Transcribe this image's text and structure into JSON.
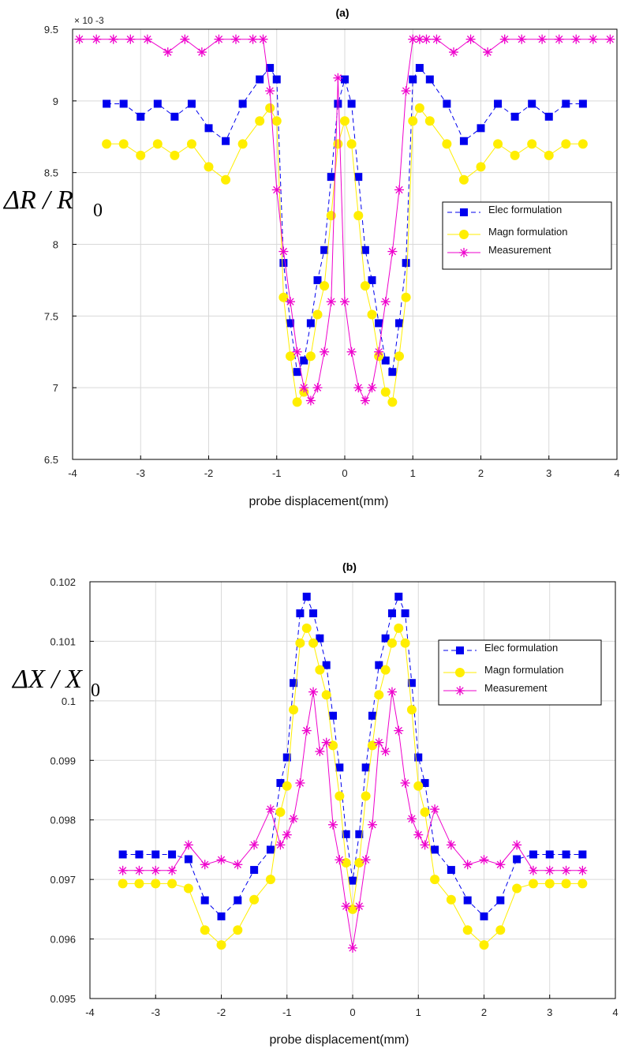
{
  "chart_data": [
    {
      "type": "line",
      "title": "(a)",
      "xlabel": "probe displacement(mm)",
      "ylabel": "ΔR / R",
      "ylabel_sub": "0",
      "y_exponent_label": "× 10 -3",
      "xlim": [
        -4,
        4
      ],
      "ylim": [
        6.5,
        9.5
      ],
      "xticks": [
        -4,
        -3,
        -2,
        -1,
        0,
        1,
        2,
        3,
        4
      ],
      "yticks": [
        6.5,
        7,
        7.5,
        8,
        8.5,
        9,
        9.5
      ],
      "ytick_labels": [
        "6.5",
        "7",
        "7.5",
        "8",
        "8.5",
        "9",
        "9.5"
      ],
      "grid": true,
      "legend_position": "center-right",
      "series": [
        {
          "name": "Elec formulation",
          "color": "#0000ee",
          "dash": "6,4",
          "marker": "square",
          "x": [
            -3.5,
            -3.25,
            -3,
            -2.75,
            -2.5,
            -2.25,
            -2,
            -1.75,
            -1.5,
            -1.25,
            -1.1,
            -1,
            -0.9,
            -0.8,
            -0.7,
            -0.6,
            -0.5,
            -0.4,
            -0.3,
            -0.2,
            -0.1,
            0,
            0.1,
            0.2,
            0.3,
            0.4,
            0.5,
            0.6,
            0.7,
            0.8,
            0.9,
            1,
            1.1,
            1.25,
            1.5,
            1.75,
            2,
            2.25,
            2.5,
            2.75,
            3,
            3.25,
            3.5
          ],
          "y": [
            8.98,
            8.98,
            8.89,
            8.98,
            8.89,
            8.98,
            8.81,
            8.72,
            8.98,
            9.15,
            9.23,
            9.15,
            7.87,
            7.45,
            7.11,
            7.19,
            7.45,
            7.75,
            7.96,
            8.47,
            8.98,
            9.15,
            8.98,
            8.47,
            7.96,
            7.75,
            7.45,
            7.19,
            7.11,
            7.45,
            7.87,
            9.15,
            9.23,
            9.15,
            8.98,
            8.72,
            8.81,
            8.98,
            8.89,
            8.98,
            8.89,
            8.98,
            8.98
          ]
        },
        {
          "name": "Magn formulation",
          "color": "#ffee00",
          "dash": "",
          "marker": "circle",
          "x": [
            -3.5,
            -3.25,
            -3,
            -2.75,
            -2.5,
            -2.25,
            -2,
            -1.75,
            -1.5,
            -1.25,
            -1.1,
            -1,
            -0.9,
            -0.8,
            -0.7,
            -0.6,
            -0.5,
            -0.4,
            -0.3,
            -0.2,
            -0.1,
            0,
            0.1,
            0.2,
            0.3,
            0.4,
            0.5,
            0.6,
            0.7,
            0.8,
            0.9,
            1,
            1.1,
            1.25,
            1.5,
            1.75,
            2,
            2.25,
            2.5,
            2.75,
            3,
            3.25,
            3.5
          ],
          "y": [
            8.7,
            8.7,
            8.62,
            8.7,
            8.62,
            8.7,
            8.54,
            8.45,
            8.7,
            8.86,
            8.95,
            8.86,
            7.63,
            7.22,
            6.9,
            6.97,
            7.22,
            7.51,
            7.71,
            8.2,
            8.7,
            8.86,
            8.7,
            8.2,
            7.71,
            7.51,
            7.22,
            6.97,
            6.9,
            7.22,
            7.63,
            8.86,
            8.95,
            8.86,
            8.7,
            8.45,
            8.54,
            8.7,
            8.62,
            8.7,
            8.62,
            8.7,
            8.7
          ]
        },
        {
          "name": "Measurement",
          "color": "#ee00cc",
          "dash": "",
          "marker": "asterisk",
          "x": [
            -3.9,
            -3.65,
            -3.4,
            -3.15,
            -2.9,
            -2.6,
            -2.35,
            -2.1,
            -1.85,
            -1.6,
            -1.35,
            -1.2,
            -1.1,
            -1,
            -0.9,
            -0.8,
            -0.7,
            -0.6,
            -0.5,
            -0.4,
            -0.3,
            -0.2,
            -0.1,
            0,
            0.1,
            0.2,
            0.3,
            0.4,
            0.5,
            0.6,
            0.7,
            0.8,
            0.9,
            1,
            1.1,
            1.2,
            1.35,
            1.6,
            1.85,
            2.1,
            2.35,
            2.6,
            2.9,
            3.15,
            3.4,
            3.65,
            3.9
          ],
          "y": [
            9.43,
            9.43,
            9.43,
            9.43,
            9.43,
            9.34,
            9.43,
            9.34,
            9.43,
            9.43,
            9.43,
            9.43,
            9.07,
            8.38,
            7.95,
            7.6,
            7.25,
            7.0,
            6.91,
            7.0,
            7.25,
            7.6,
            9.16,
            7.6,
            7.25,
            7.0,
            6.91,
            7.0,
            7.25,
            7.6,
            7.95,
            8.38,
            9.07,
            9.43,
            9.43,
            9.43,
            9.43,
            9.34,
            9.43,
            9.34,
            9.43,
            9.43,
            9.43,
            9.43,
            9.43,
            9.43,
            9.43
          ]
        }
      ]
    },
    {
      "type": "line",
      "title": "(b)",
      "xlabel": "probe displacement(mm)",
      "ylabel": "ΔX / X",
      "ylabel_sub": "0",
      "xlim": [
        -4,
        4
      ],
      "ylim": [
        0.095,
        0.102
      ],
      "xticks": [
        -4,
        -3,
        -2,
        -1,
        0,
        1,
        2,
        3,
        4
      ],
      "yticks": [
        0.095,
        0.096,
        0.097,
        0.098,
        0.099,
        0.1,
        0.101,
        0.102
      ],
      "ytick_labels": [
        "0.095",
        "0.096",
        "0.097",
        "0.098",
        "0.099",
        "0.1",
        "0.101",
        "0.102"
      ],
      "grid": true,
      "legend_position": "upper-right",
      "series": [
        {
          "name": "Elec formulation",
          "color": "#0000ee",
          "dash": "6,4",
          "marker": "square",
          "x": [
            -3.5,
            -3.25,
            -3,
            -2.75,
            -2.5,
            -2.25,
            -2,
            -1.75,
            -1.5,
            -1.25,
            -1.1,
            -1,
            -0.9,
            -0.8,
            -0.7,
            -0.6,
            -0.5,
            -0.4,
            -0.3,
            -0.2,
            -0.1,
            0,
            0.1,
            0.2,
            0.3,
            0.4,
            0.5,
            0.6,
            0.7,
            0.8,
            0.9,
            1,
            1.1,
            1.25,
            1.5,
            1.75,
            2,
            2.25,
            2.5,
            2.75,
            3,
            3.25,
            3.5
          ],
          "y": [
            0.09742,
            0.09742,
            0.09742,
            0.09742,
            0.09734,
            0.09665,
            0.09638,
            0.09665,
            0.09716,
            0.0975,
            0.09862,
            0.09905,
            0.1003,
            0.10147,
            0.10175,
            0.10147,
            0.10105,
            0.1006,
            0.09975,
            0.09888,
            0.09776,
            0.09698,
            0.09776,
            0.09888,
            0.09975,
            0.1006,
            0.10105,
            0.10147,
            0.10175,
            0.10147,
            0.1003,
            0.09905,
            0.09862,
            0.0975,
            0.09716,
            0.09665,
            0.09638,
            0.09665,
            0.09734,
            0.09742,
            0.09742,
            0.09742,
            0.09742
          ]
        },
        {
          "name": "Magn formulation",
          "color": "#ffee00",
          "dash": "",
          "marker": "circle",
          "x": [
            -3.5,
            -3.25,
            -3,
            -2.75,
            -2.5,
            -2.25,
            -2,
            -1.75,
            -1.5,
            -1.25,
            -1.1,
            -1,
            -0.9,
            -0.8,
            -0.7,
            -0.6,
            -0.5,
            -0.4,
            -0.3,
            -0.2,
            -0.1,
            0,
            0.1,
            0.2,
            0.3,
            0.4,
            0.5,
            0.6,
            0.7,
            0.8,
            0.9,
            1,
            1.1,
            1.25,
            1.5,
            1.75,
            2,
            2.25,
            2.5,
            2.75,
            3,
            3.25,
            3.5
          ],
          "y": [
            0.09693,
            0.09693,
            0.09693,
            0.09693,
            0.09685,
            0.09615,
            0.0959,
            0.09615,
            0.09666,
            0.097,
            0.09813,
            0.09857,
            0.09985,
            0.10097,
            0.10122,
            0.10097,
            0.10052,
            0.1001,
            0.09925,
            0.0984,
            0.09728,
            0.0965,
            0.09728,
            0.0984,
            0.09925,
            0.1001,
            0.10052,
            0.10097,
            0.10122,
            0.10097,
            0.09985,
            0.09857,
            0.09813,
            0.097,
            0.09666,
            0.09615,
            0.0959,
            0.09615,
            0.09685,
            0.09693,
            0.09693,
            0.09693,
            0.09693
          ]
        },
        {
          "name": "Measurement",
          "color": "#ee00cc",
          "dash": "",
          "marker": "asterisk",
          "x": [
            -3.5,
            -3.25,
            -3,
            -2.75,
            -2.5,
            -2.25,
            -2,
            -1.75,
            -1.5,
            -1.25,
            -1.1,
            -1,
            -0.9,
            -0.8,
            -0.7,
            -0.6,
            -0.5,
            -0.4,
            -0.3,
            -0.2,
            -0.1,
            0,
            0.1,
            0.2,
            0.3,
            0.4,
            0.5,
            0.6,
            0.7,
            0.8,
            0.9,
            1,
            1.1,
            1.25,
            1.5,
            1.75,
            2,
            2.25,
            2.5,
            2.75,
            3,
            3.25,
            3.5
          ],
          "y": [
            0.09715,
            0.09715,
            0.09715,
            0.09715,
            0.09758,
            0.09725,
            0.09733,
            0.09725,
            0.09758,
            0.09818,
            0.09758,
            0.09775,
            0.09802,
            0.09862,
            0.0995,
            0.10015,
            0.09915,
            0.0993,
            0.09792,
            0.09733,
            0.09655,
            0.09585,
            0.09655,
            0.09733,
            0.09792,
            0.0993,
            0.09915,
            0.10015,
            0.0995,
            0.09862,
            0.09802,
            0.09775,
            0.09758,
            0.09818,
            0.09758,
            0.09725,
            0.09733,
            0.09725,
            0.09758,
            0.09715,
            0.09715,
            0.09715,
            0.09715
          ]
        }
      ]
    }
  ]
}
